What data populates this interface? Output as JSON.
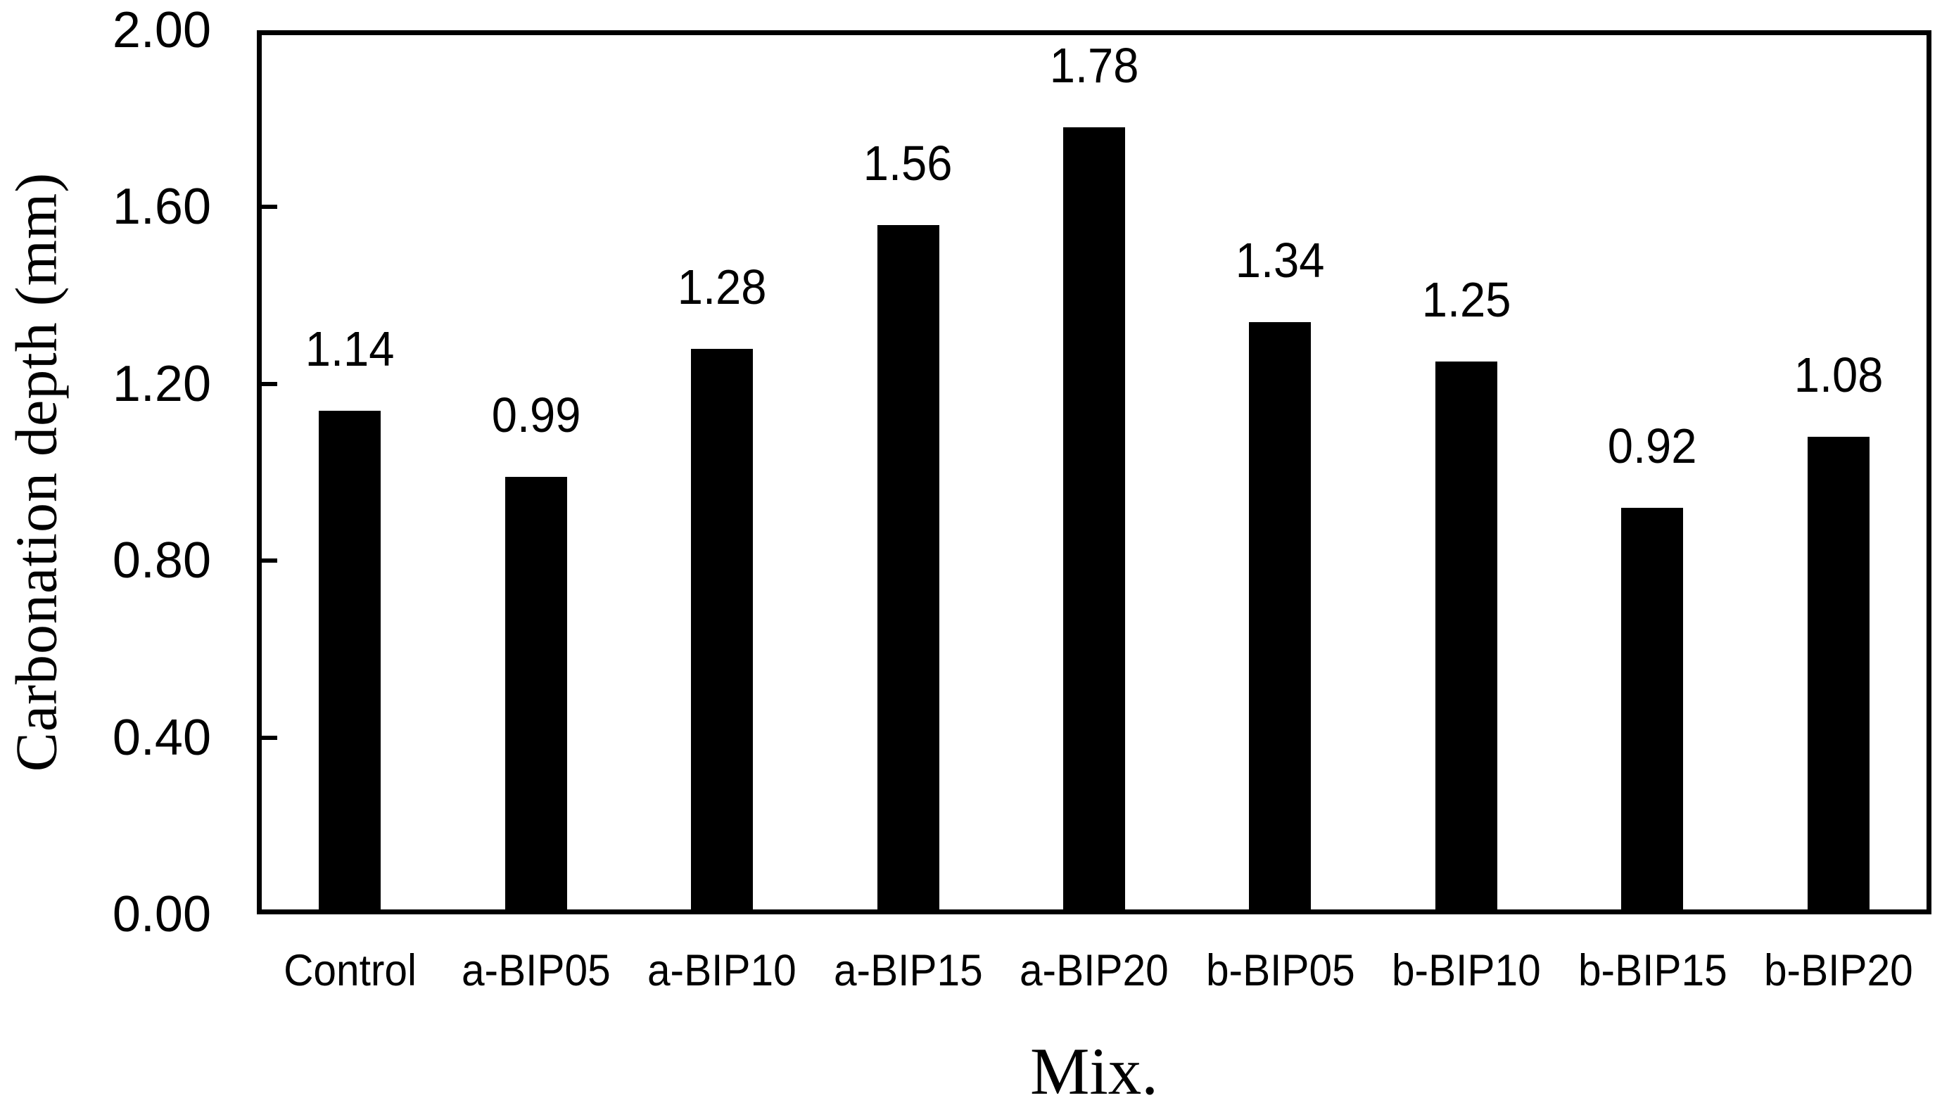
{
  "chart_data": {
    "type": "bar",
    "title": "",
    "xlabel": "Mix.",
    "ylabel": "Carbonation depth (mm)",
    "categories": [
      "Control",
      "a-BIP05",
      "a-BIP10",
      "a-BIP15",
      "a-BIP20",
      "b-BIP05",
      "b-BIP10",
      "b-BIP15",
      "b-BIP20"
    ],
    "values": [
      1.14,
      0.99,
      1.28,
      1.56,
      1.78,
      1.34,
      1.25,
      0.92,
      1.08
    ],
    "data_labels": [
      "1.14",
      "0.99",
      "1.28",
      "1.56",
      "1.78",
      "1.34",
      "1.25",
      "0.92",
      "1.08"
    ],
    "ylim": [
      0.0,
      2.0
    ],
    "ytick_step": 0.4,
    "yticks": [
      "0.00",
      "0.40",
      "0.80",
      "1.20",
      "1.60",
      "2.00"
    ],
    "grid": false,
    "legend_position": "none",
    "bar_color": "#000000",
    "axis_color": "#000000",
    "text_color": "#000000",
    "background_color": "#ffffff"
  }
}
